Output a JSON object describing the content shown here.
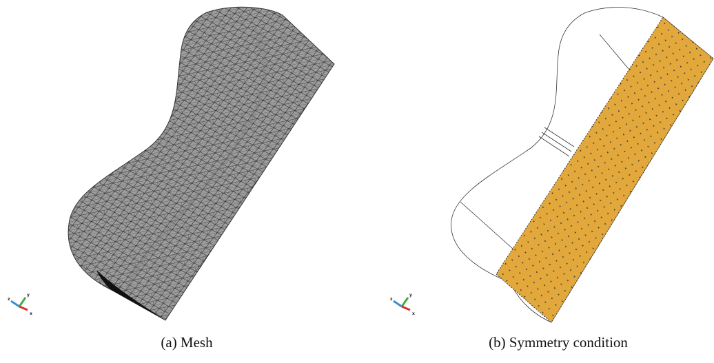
{
  "figures": [
    {
      "caption": "(a) Mesh",
      "axes": {
        "x": "x",
        "y": "y",
        "z": "z"
      }
    },
    {
      "caption": "(b) Symmetry condition",
      "axes": {
        "x": "x",
        "y": "y",
        "z": "z"
      }
    }
  ]
}
